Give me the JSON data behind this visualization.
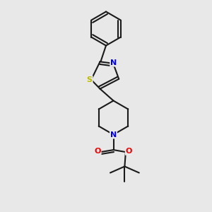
{
  "background_color": "#e8e8e8",
  "line_color": "#1a1a1a",
  "bond_width": 1.5,
  "atom_colors": {
    "N": "#0000ee",
    "S": "#bbbb00",
    "O": "#ee0000",
    "C": "#1a1a1a"
  },
  "font_size": 9,
  "figsize": [
    3.0,
    3.0
  ],
  "dpi": 100
}
